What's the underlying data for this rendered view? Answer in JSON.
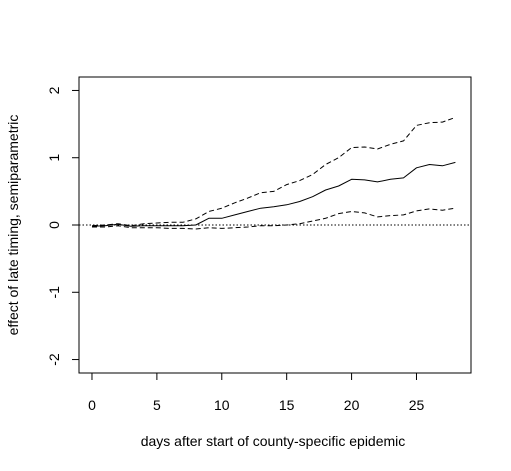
{
  "chart_data": {
    "type": "line",
    "xlabel": "days after start of county-specific epidemic",
    "ylabel": "effect of late timing, semiparametric",
    "xlim": [
      -1,
      29.2
    ],
    "ylim": [
      -2.2,
      2.2
    ],
    "xticks": [
      0,
      5,
      10,
      15,
      20,
      25
    ],
    "yticks": [
      -2,
      -1,
      0,
      1,
      2
    ],
    "reference_line": {
      "y": 0,
      "style": "dotted"
    },
    "series": [
      {
        "style": "solid",
        "x": [
          0,
          1,
          2,
          3,
          4,
          5,
          6,
          7,
          8,
          9,
          10,
          11,
          12,
          13,
          14,
          15,
          16,
          17,
          18,
          19,
          20,
          21,
          22,
          23,
          24,
          25,
          26,
          27,
          28
        ],
        "y": [
          -0.02,
          -0.01,
          0.01,
          -0.02,
          -0.01,
          -0.01,
          -0.01,
          -0.01,
          0.0,
          0.1,
          0.1,
          0.15,
          0.2,
          0.25,
          0.27,
          0.3,
          0.35,
          0.42,
          0.52,
          0.58,
          0.68,
          0.67,
          0.64,
          0.68,
          0.7,
          0.85,
          0.9,
          0.88,
          0.93
        ]
      },
      {
        "style": "dashed",
        "x": [
          0,
          1,
          2,
          3,
          4,
          5,
          6,
          7,
          8,
          9,
          10,
          11,
          12,
          13,
          14,
          15,
          16,
          17,
          18,
          19,
          20,
          21,
          22,
          23,
          24,
          25,
          26,
          27,
          28
        ],
        "y": [
          -0.01,
          0.0,
          0.02,
          -0.01,
          0.02,
          0.03,
          0.04,
          0.04,
          0.09,
          0.2,
          0.25,
          0.33,
          0.4,
          0.48,
          0.5,
          0.6,
          0.66,
          0.75,
          0.9,
          1.0,
          1.15,
          1.16,
          1.13,
          1.2,
          1.25,
          1.48,
          1.52,
          1.53,
          1.6
        ]
      },
      {
        "style": "dashed",
        "x": [
          0,
          1,
          2,
          3,
          4,
          5,
          6,
          7,
          8,
          9,
          10,
          11,
          12,
          13,
          14,
          15,
          16,
          17,
          18,
          19,
          20,
          21,
          22,
          23,
          24,
          25,
          26,
          27,
          28
        ],
        "y": [
          -0.03,
          -0.03,
          -0.01,
          -0.04,
          -0.04,
          -0.04,
          -0.05,
          -0.05,
          -0.06,
          -0.04,
          -0.05,
          -0.04,
          -0.03,
          -0.01,
          -0.01,
          0.0,
          0.02,
          0.06,
          0.1,
          0.17,
          0.2,
          0.18,
          0.12,
          0.14,
          0.15,
          0.21,
          0.24,
          0.22,
          0.25
        ]
      }
    ]
  }
}
